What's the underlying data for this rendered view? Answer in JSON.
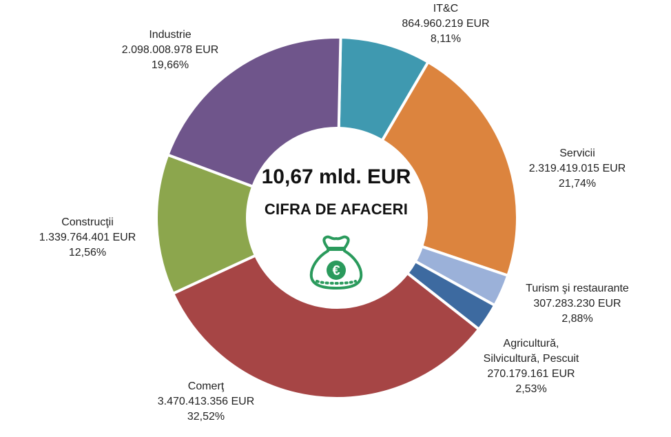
{
  "colors": {
    "industrie": "#6f558b",
    "itc": "#3f99b0",
    "servicii": "#dc843e",
    "turism": "#9bb1d9",
    "agricultura": "#3d6aa0",
    "comert": "#a64545",
    "constructii": "#8ca64d",
    "bag": "#2a9a5c"
  },
  "center": {
    "total": "10,67 mld. EUR",
    "subtitle": "CIFRA DE AFACERI",
    "icon": "money-bag-euro-icon"
  },
  "chart_data": {
    "type": "pie",
    "donut": true,
    "legend": "none",
    "series": [
      {
        "slices": [
          {
            "key": "itc",
            "label": "IT&C",
            "value_text": "864.960.219 EUR",
            "percent_text": "8,11%",
            "value": 864960219,
            "percent": 8.11
          },
          {
            "key": "servicii",
            "label": "Servicii",
            "value_text": "2.319.419.015 EUR",
            "percent_text": "21,74%",
            "value": 2319419015,
            "percent": 21.74
          },
          {
            "key": "turism",
            "label": "Turism şi restaurante",
            "value_text": "307.283.230 EUR",
            "percent_text": "2,88%",
            "value": 307283230,
            "percent": 2.88
          },
          {
            "key": "agricultura",
            "label": [
              "Agricultură,",
              "Silvicultură, Pescuit"
            ],
            "value_text": "270.179.161 EUR",
            "percent_text": "2,53%",
            "value": 270179161,
            "percent": 2.53
          },
          {
            "key": "comert",
            "label": "Comerţ",
            "value_text": "3.470.413.356 EUR",
            "percent_text": "32,52%",
            "value": 3470413356,
            "percent": 32.52
          },
          {
            "key": "constructii",
            "label": "Construcţii",
            "value_text": "1.339.764.401 EUR",
            "percent_text": "12,56%",
            "value": 1339764401,
            "percent": 12.56
          },
          {
            "key": "industrie",
            "label": "Industrie",
            "value_text": "2.098.008.978 EUR",
            "percent_text": "19,66%",
            "value": 2098008978,
            "percent": 19.66
          }
        ]
      }
    ]
  }
}
